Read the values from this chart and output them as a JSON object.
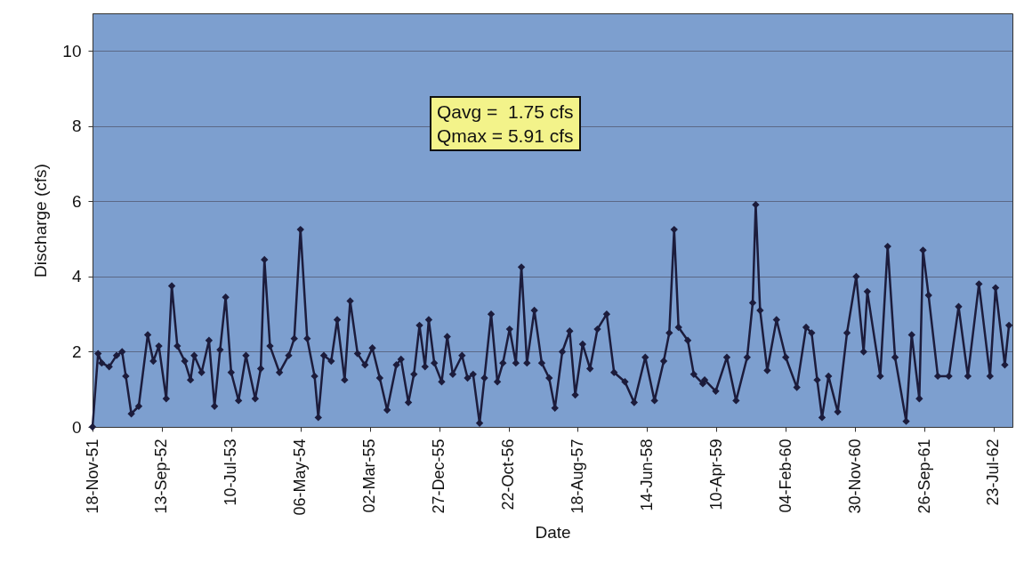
{
  "chart_data": {
    "type": "line",
    "xlabel": "Date",
    "ylabel": "Discharge (cfs)",
    "annotations": [
      "Qavg =  1.75 cfs",
      "Qmax = 5.91 cfs"
    ],
    "xlim": [
      "1951-11-18",
      "1962-10-12"
    ],
    "xticks": [
      {
        "value": "1951-11-18",
        "label": "18-Nov-51"
      },
      {
        "value": "1952-09-13",
        "label": "13-Sep-52"
      },
      {
        "value": "1953-07-10",
        "label": "10-Jul-53"
      },
      {
        "value": "1954-05-06",
        "label": "06-May-54"
      },
      {
        "value": "1955-03-02",
        "label": "02-Mar-55"
      },
      {
        "value": "1955-12-27",
        "label": "27-Dec-55"
      },
      {
        "value": "1956-10-22",
        "label": "22-Oct-56"
      },
      {
        "value": "1957-08-18",
        "label": "18-Aug-57"
      },
      {
        "value": "1958-06-14",
        "label": "14-Jun-58"
      },
      {
        "value": "1959-04-10",
        "label": "10-Apr-59"
      },
      {
        "value": "1960-02-04",
        "label": "04-Feb-60"
      },
      {
        "value": "1960-11-30",
        "label": "30-Nov-60"
      },
      {
        "value": "1961-09-26",
        "label": "26-Sep-61"
      },
      {
        "value": "1962-07-23",
        "label": "23-Jul-62"
      }
    ],
    "ylim": [
      0,
      11
    ],
    "yticks": [
      0,
      2,
      4,
      6,
      8,
      10
    ],
    "grid": "y",
    "marker": "diamond",
    "x": [
      "1951-11-18",
      "1951-12-12",
      "1951-12-28",
      "1952-01-29",
      "1952-03-01",
      "1952-03-25",
      "1952-04-10",
      "1952-05-04",
      "1952-06-05",
      "1952-07-14",
      "1952-08-07",
      "1952-08-31",
      "1952-10-02",
      "1952-10-26",
      "1952-11-19",
      "1952-12-21",
      "1953-01-15",
      "1953-01-31",
      "1953-03-04",
      "1953-04-05",
      "1953-04-29",
      "1953-05-23",
      "1953-06-16",
      "1953-07-10",
      "1953-08-11",
      "1953-09-12",
      "1953-10-22",
      "1953-11-15",
      "1953-12-01",
      "1953-12-25",
      "1954-02-04",
      "1954-03-16",
      "1954-04-09",
      "1954-05-06",
      "1954-06-04",
      "1954-07-06",
      "1954-07-22",
      "1954-08-15",
      "1954-09-16",
      "1954-10-12",
      "1954-11-13",
      "1954-12-07",
      "1955-01-08",
      "1955-02-09",
      "1955-03-13",
      "1955-04-14",
      "1955-05-16",
      "1955-06-25",
      "1955-07-15",
      "1955-08-16",
      "1955-09-09",
      "1955-10-03",
      "1955-10-27",
      "1955-11-12",
      "1955-12-06",
      "1956-01-07",
      "1956-01-31",
      "1956-02-24",
      "1956-04-04",
      "1956-04-28",
      "1956-05-22",
      "1956-06-19",
      "1956-07-10",
      "1956-08-08",
      "1956-09-04",
      "1956-09-28",
      "1956-10-27",
      "1956-11-23",
      "1956-12-17",
      "1957-01-10",
      "1957-02-11",
      "1957-03-15",
      "1957-04-16",
      "1957-05-11",
      "1957-06-12",
      "1957-07-14",
      "1957-08-07",
      "1957-09-08",
      "1957-10-10",
      "1957-11-11",
      "1957-12-21",
      "1958-01-22",
      "1958-03-10",
      "1958-04-19",
      "1958-06-06",
      "1958-07-16",
      "1958-08-25",
      "1958-09-18",
      "1958-10-09",
      "1958-10-28",
      "1958-12-07",
      "1959-01-02",
      "1959-02-10",
      "1959-02-18",
      "1959-04-07",
      "1959-05-25",
      "1959-07-04",
      "1959-08-21",
      "1959-09-14",
      "1959-09-27",
      "1959-10-16",
      "1959-11-16",
      "1959-12-26",
      "1960-02-04",
      "1960-03-23",
      "1960-05-02",
      "1960-05-26",
      "1960-06-19",
      "1960-07-10",
      "1960-08-07",
      "1960-09-16",
      "1960-10-26",
      "1960-12-05",
      "1961-01-06",
      "1961-01-22",
      "1961-03-19",
      "1961-04-20",
      "1961-05-22",
      "1961-07-09",
      "1961-08-02",
      "1961-09-04",
      "1961-09-20",
      "1961-10-14",
      "1961-11-23",
      "1962-01-10",
      "1962-02-21",
      "1962-04-02",
      "1962-05-20",
      "1962-07-07",
      "1962-07-31",
      "1962-09-09",
      "1962-09-27"
    ],
    "series": [
      {
        "color": "#1c1c3c",
        "values": [
          0,
          1.95,
          1.7,
          1.6,
          1.9,
          2.0,
          1.35,
          0.35,
          0.55,
          2.45,
          1.75,
          2.15,
          0.75,
          3.75,
          2.15,
          1.75,
          1.25,
          1.9,
          1.45,
          2.3,
          0.55,
          2.05,
          3.45,
          1.45,
          0.7,
          1.9,
          0.75,
          1.55,
          4.45,
          2.15,
          1.45,
          1.9,
          2.35,
          5.25,
          2.35,
          1.35,
          0.25,
          1.9,
          1.75,
          2.85,
          1.25,
          3.35,
          1.95,
          1.65,
          2.1,
          1.3,
          0.45,
          1.65,
          1.8,
          0.65,
          1.4,
          2.7,
          1.6,
          2.85,
          1.7,
          1.2,
          2.4,
          1.4,
          1.9,
          1.3,
          1.4,
          0.1,
          1.3,
          3.0,
          1.2,
          1.7,
          2.6,
          1.7,
          4.25,
          1.7,
          3.1,
          1.7,
          1.3,
          0.5,
          2.0,
          2.55,
          0.85,
          2.2,
          1.55,
          2.6,
          3.0,
          1.45,
          1.2,
          0.65,
          1.85,
          0.7,
          1.75,
          2.5,
          5.25,
          2.65,
          2.3,
          1.4,
          1.15,
          1.25,
          0.95,
          1.85,
          0.7,
          1.85,
          3.3,
          5.91,
          3.1,
          1.5,
          2.85,
          1.85,
          1.05,
          2.65,
          2.5,
          1.25,
          0.25,
          1.35,
          0.4,
          2.5,
          4.0,
          2.0,
          3.6,
          1.35,
          4.8,
          1.85,
          0.15,
          2.45,
          0.75,
          4.7,
          3.5,
          1.35,
          1.35,
          3.2,
          1.35,
          3.8,
          1.35,
          3.7,
          1.65,
          2.7
        ]
      }
    ]
  }
}
